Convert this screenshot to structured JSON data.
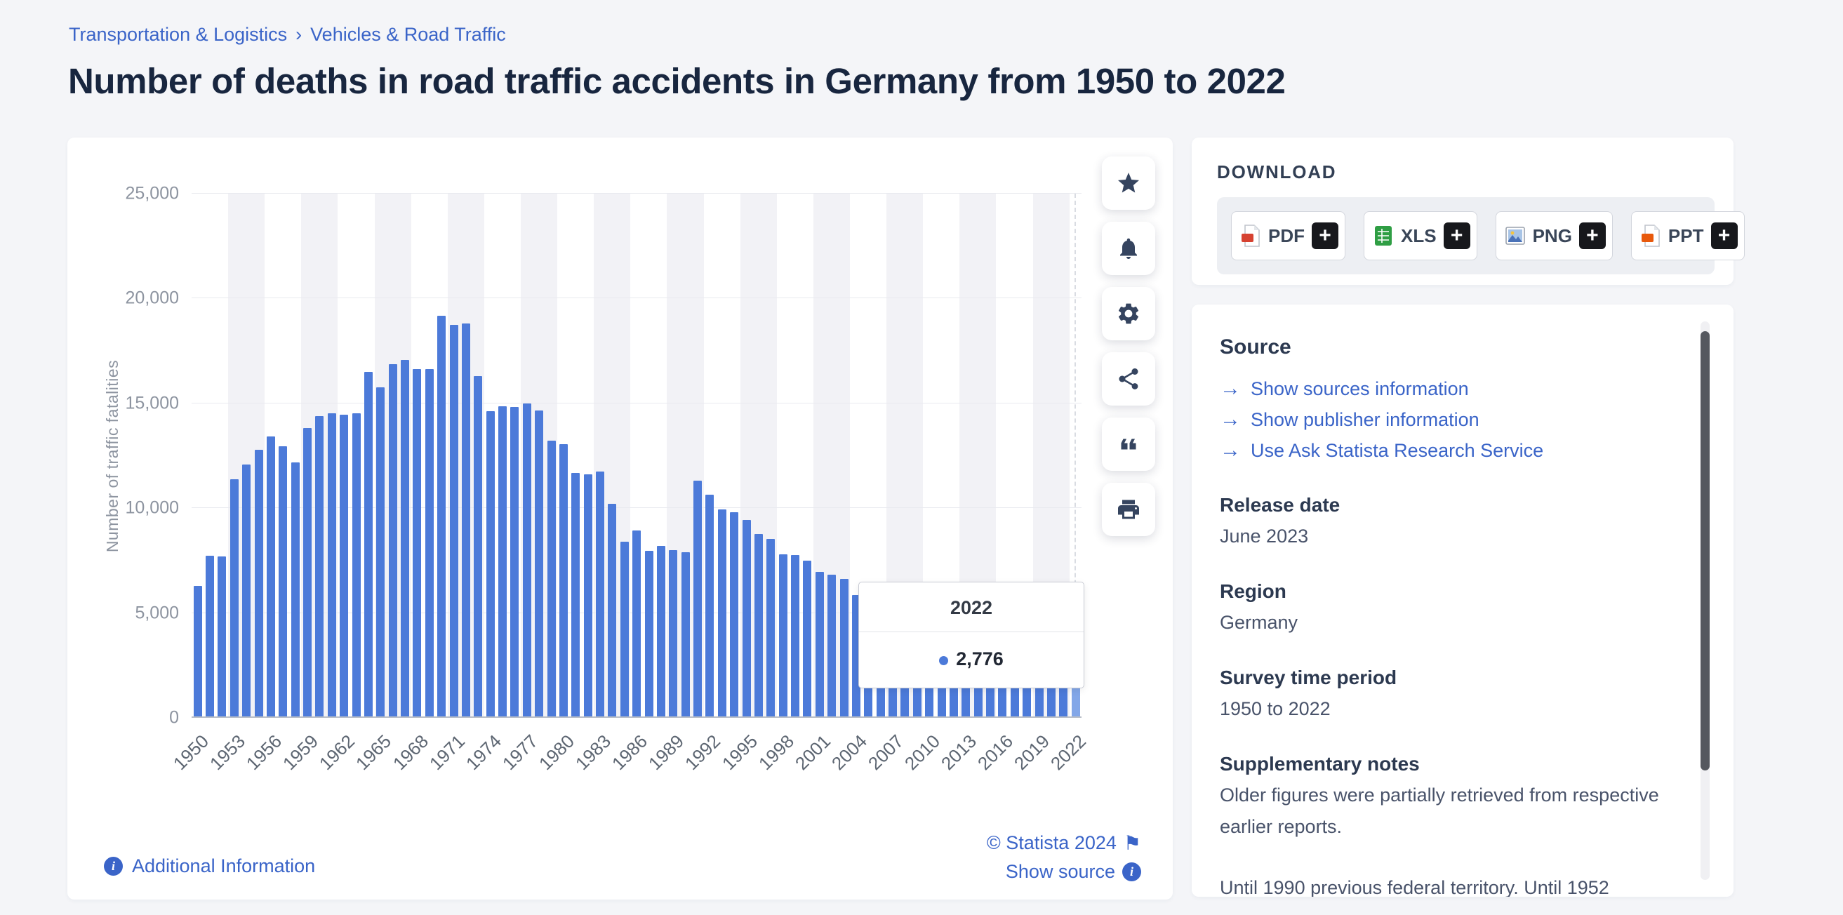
{
  "breadcrumb": {
    "items": [
      "Transportation & Logistics",
      "Vehicles & Road Traffic"
    ]
  },
  "page_title": "Number of deaths in road traffic accidents in Germany from 1950 to 2022",
  "icons": {
    "chevron": "›",
    "flag": "⚑",
    "info": "i",
    "plus": "+",
    "arrow": "→",
    "star": "★"
  },
  "chart_data": {
    "type": "bar",
    "title": "Number of deaths in road traffic accidents in Germany from 1950 to 2022",
    "xlabel": "",
    "ylabel": "Number of traffic fatalities",
    "ylim": [
      0,
      25000
    ],
    "grid": true,
    "bar_color": "#4c7ad9",
    "yticks": [
      {
        "value": 0,
        "label": "0"
      },
      {
        "value": 5000,
        "label": "5,000"
      },
      {
        "value": 10000,
        "label": "10,000"
      },
      {
        "value": 15000,
        "label": "15,000"
      },
      {
        "value": 20000,
        "label": "20,000"
      },
      {
        "value": 25000,
        "label": "25,000"
      }
    ],
    "x_tick_every": 3,
    "x_tick_labels": [
      "1950",
      "1953",
      "1956",
      "1959",
      "1962",
      "1965",
      "1968",
      "1971",
      "1974",
      "1977",
      "1980",
      "1983",
      "1986",
      "1989",
      "1992",
      "1995",
      "1998",
      "2001",
      "2004",
      "2007",
      "2010",
      "2013",
      "2016",
      "2019",
      "2022"
    ],
    "categories": [
      1950,
      1951,
      1952,
      1953,
      1954,
      1955,
      1956,
      1957,
      1958,
      1959,
      1960,
      1961,
      1962,
      1963,
      1964,
      1965,
      1966,
      1967,
      1968,
      1969,
      1970,
      1971,
      1972,
      1973,
      1974,
      1975,
      1976,
      1977,
      1978,
      1979,
      1980,
      1981,
      1982,
      1983,
      1984,
      1985,
      1986,
      1987,
      1988,
      1989,
      1990,
      1991,
      1992,
      1993,
      1994,
      1995,
      1996,
      1997,
      1998,
      1999,
      2000,
      2001,
      2002,
      2003,
      2004,
      2005,
      2006,
      2007,
      2008,
      2009,
      2010,
      2011,
      2012,
      2013,
      2014,
      2015,
      2016,
      2017,
      2018,
      2019,
      2020,
      2021,
      2022
    ],
    "values": [
      6283,
      7740,
      7697,
      11379,
      12087,
      12790,
      13427,
      12959,
      12174,
      13822,
      14406,
      14519,
      14445,
      14513,
      16494,
      15753,
      16868,
      17084,
      16636,
      16646,
      19193,
      18753,
      18811,
      16302,
      14614,
      14870,
      14820,
      14978,
      14662,
      13222,
      13041,
      11674,
      11608,
      11732,
      10199,
      8400,
      8948,
      7967,
      8213,
      7995,
      7906,
      11300,
      10631,
      9949,
      9814,
      9454,
      8758,
      8549,
      7792,
      7772,
      7503,
      6977,
      6842,
      6613,
      5842,
      5361,
      5091,
      4949,
      4477,
      4152,
      3648,
      4009,
      3600,
      3339,
      3377,
      3459,
      3206,
      3180,
      3275,
      3046,
      2719,
      2562,
      2776
    ],
    "tooltip": {
      "year": "2022",
      "value": "2,776"
    },
    "legend_position": "none"
  },
  "chart_footer": {
    "additional_info": "Additional Information",
    "copyright": "© Statista 2024",
    "show_source": "Show source"
  },
  "toolbar": {
    "buttons": [
      {
        "name": "favorite",
        "icon": "star-icon"
      },
      {
        "name": "alerts",
        "icon": "bell-icon"
      },
      {
        "name": "settings",
        "icon": "gear-icon"
      },
      {
        "name": "share",
        "icon": "share-icon"
      },
      {
        "name": "cite",
        "icon": "quote-icon"
      },
      {
        "name": "print",
        "icon": "printer-icon"
      }
    ]
  },
  "download": {
    "heading": "DOWNLOAD",
    "buttons": [
      {
        "label": "PDF",
        "icon": "pdf-file-icon"
      },
      {
        "label": "XLS",
        "icon": "xls-file-icon"
      },
      {
        "label": "PNG",
        "icon": "png-file-icon"
      },
      {
        "label": "PPT",
        "icon": "ppt-file-icon"
      }
    ]
  },
  "source_panel": {
    "source_heading": "Source",
    "links": [
      "Show sources information",
      "Show publisher information",
      "Use Ask Statista Research Service"
    ],
    "sections": [
      {
        "heading": "Release date",
        "text": "June 2023"
      },
      {
        "heading": "Region",
        "text": "Germany"
      },
      {
        "heading": "Survey time period",
        "text": "1950 to 2022"
      },
      {
        "heading": "Supplementary notes",
        "text": "Older figures were partially retrieved from respective earlier reports."
      }
    ],
    "extra_note": "Until 1990 previous federal territory. Until 1952 without Saarland."
  }
}
